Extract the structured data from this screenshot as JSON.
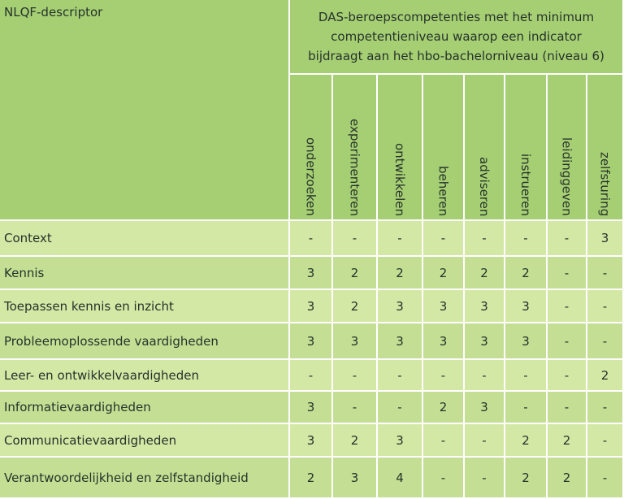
{
  "table": {
    "corner": "NLQF-descriptor",
    "group_header": "DAS-beroepscompetenties met het minimum competentieniveau waarop een indicator bijdraagt aan het hbo-bachelorniveau (niveau 6)",
    "columns": [
      "onderzoeken",
      "experimenteren",
      "ontwikkelen",
      "beheren",
      "adviseren",
      "instrueren",
      "leidinggeven",
      "zelfsturing"
    ],
    "rows": [
      {
        "label": "Context",
        "cells": [
          "-",
          "-",
          "-",
          "-",
          "-",
          "-",
          "-",
          3
        ]
      },
      {
        "label": "Kennis",
        "cells": [
          3,
          2,
          2,
          2,
          2,
          2,
          "-",
          "-"
        ]
      },
      {
        "label": "Toepassen kennis en inzicht",
        "cells": [
          3,
          2,
          3,
          3,
          3,
          3,
          "-",
          "-"
        ]
      },
      {
        "label": "Probleemoplossende vaardigheden",
        "cells": [
          3,
          3,
          3,
          3,
          3,
          3,
          "-",
          "-"
        ]
      },
      {
        "label": "Leer- en ontwikkelvaardigheden",
        "cells": [
          "-",
          "-",
          "-",
          "-",
          "-",
          "-",
          "-",
          2
        ]
      },
      {
        "label": "Informatievaardigheden",
        "cells": [
          3,
          "-",
          "-",
          2,
          3,
          "-",
          "-",
          "-"
        ]
      },
      {
        "label": "Communicatievaardigheden",
        "cells": [
          3,
          2,
          3,
          "-",
          "-",
          2,
          2,
          "-"
        ]
      },
      {
        "label": "Verantwoordelijkheid en zelfstandigheid",
        "cells": [
          2,
          3,
          4,
          "-",
          "-",
          2,
          2,
          "-"
        ]
      }
    ]
  }
}
